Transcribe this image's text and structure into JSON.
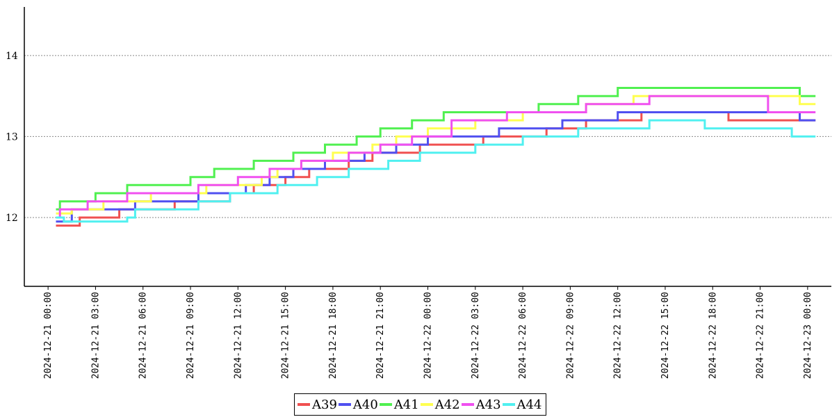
{
  "chart_data": {
    "type": "line",
    "step": true,
    "xlim": [
      "2024-12-20 22:30",
      "2024-12-23 01:30"
    ],
    "ylim": [
      11.15,
      14.6
    ],
    "y_ticks": [
      12,
      13,
      14
    ],
    "x_ticks": [
      "2024-12-21 00:00",
      "2024-12-21 03:00",
      "2024-12-21 06:00",
      "2024-12-21 09:00",
      "2024-12-21 12:00",
      "2024-12-21 15:00",
      "2024-12-21 18:00",
      "2024-12-21 21:00",
      "2024-12-22 00:00",
      "2024-12-22 03:00",
      "2024-12-22 06:00",
      "2024-12-22 09:00",
      "2024-12-22 12:00",
      "2024-12-22 15:00",
      "2024-12-22 18:00",
      "2024-12-22 21:00",
      "2024-12-23 00:00"
    ],
    "grid": "horizontal dotted",
    "legend": "bottom-center",
    "series": [
      {
        "name": "A39",
        "color": "#f05050",
        "points": [
          [
            "2024-12-21 00:30",
            11.9
          ],
          [
            "2024-12-21 02:00",
            12.0
          ],
          [
            "2024-12-21 04:30",
            12.1
          ],
          [
            "2024-12-21 08:00",
            12.2
          ],
          [
            "2024-12-21 11:30",
            12.3
          ],
          [
            "2024-12-21 13:00",
            12.4
          ],
          [
            "2024-12-21 15:00",
            12.5
          ],
          [
            "2024-12-21 16:30",
            12.6
          ],
          [
            "2024-12-21 19:00",
            12.7
          ],
          [
            "2024-12-21 20:30",
            12.8
          ],
          [
            "2024-12-21 23:30",
            12.9
          ],
          [
            "2024-12-22 03:30",
            13.0
          ],
          [
            "2024-12-22 07:30",
            13.1
          ],
          [
            "2024-12-22 10:00",
            13.2
          ],
          [
            "2024-12-22 13:30",
            13.3
          ],
          [
            "2024-12-22 19:00",
            13.2
          ],
          [
            "2024-12-23 00:30",
            13.2
          ]
        ]
      },
      {
        "name": "A40",
        "color": "#5050f0",
        "points": [
          [
            "2024-12-21 00:30",
            11.95
          ],
          [
            "2024-12-21 01:30",
            12.1
          ],
          [
            "2024-12-21 05:30",
            12.2
          ],
          [
            "2024-12-21 09:30",
            12.3
          ],
          [
            "2024-12-21 12:30",
            12.4
          ],
          [
            "2024-12-21 14:00",
            12.5
          ],
          [
            "2024-12-21 15:30",
            12.6
          ],
          [
            "2024-12-21 17:30",
            12.7
          ],
          [
            "2024-12-21 20:00",
            12.8
          ],
          [
            "2024-12-21 22:00",
            12.9
          ],
          [
            "2024-12-22 00:00",
            13.0
          ],
          [
            "2024-12-22 04:30",
            13.1
          ],
          [
            "2024-12-22 08:30",
            13.2
          ],
          [
            "2024-12-22 12:00",
            13.3
          ],
          [
            "2024-12-22 23:30",
            13.2
          ],
          [
            "2024-12-23 00:30",
            13.2
          ]
        ]
      },
      {
        "name": "A41",
        "color": "#50f050",
        "points": [
          [
            "2024-12-21 00:30",
            12.1
          ],
          [
            "2024-12-21 00:45",
            12.2
          ],
          [
            "2024-12-21 03:00",
            12.3
          ],
          [
            "2024-12-21 05:00",
            12.4
          ],
          [
            "2024-12-21 09:00",
            12.5
          ],
          [
            "2024-12-21 10:30",
            12.6
          ],
          [
            "2024-12-21 13:00",
            12.7
          ],
          [
            "2024-12-21 15:30",
            12.8
          ],
          [
            "2024-12-21 17:30",
            12.9
          ],
          [
            "2024-12-21 19:30",
            13.0
          ],
          [
            "2024-12-21 21:00",
            13.1
          ],
          [
            "2024-12-21 23:00",
            13.2
          ],
          [
            "2024-12-22 01:00",
            13.3
          ],
          [
            "2024-12-22 07:00",
            13.4
          ],
          [
            "2024-12-22 09:30",
            13.5
          ],
          [
            "2024-12-22 12:00",
            13.6
          ],
          [
            "2024-12-22 23:30",
            13.5
          ],
          [
            "2024-12-23 00:30",
            13.5
          ]
        ]
      },
      {
        "name": "A42",
        "color": "#ffff50",
        "points": [
          [
            "2024-12-21 00:30",
            12.05
          ],
          [
            "2024-12-21 01:30",
            12.1
          ],
          [
            "2024-12-21 03:30",
            12.2
          ],
          [
            "2024-12-21 06:30",
            12.3
          ],
          [
            "2024-12-21 10:00",
            12.4
          ],
          [
            "2024-12-21 13:30",
            12.5
          ],
          [
            "2024-12-21 14:30",
            12.6
          ],
          [
            "2024-12-21 16:00",
            12.7
          ],
          [
            "2024-12-21 18:00",
            12.8
          ],
          [
            "2024-12-21 20:30",
            12.9
          ],
          [
            "2024-12-21 22:00",
            13.0
          ],
          [
            "2024-12-22 00:00",
            13.1
          ],
          [
            "2024-12-22 03:00",
            13.2
          ],
          [
            "2024-12-22 06:00",
            13.3
          ],
          [
            "2024-12-22 10:00",
            13.4
          ],
          [
            "2024-12-22 13:00",
            13.5
          ],
          [
            "2024-12-22 23:30",
            13.4
          ],
          [
            "2024-12-23 00:30",
            13.4
          ]
        ]
      },
      {
        "name": "A43",
        "color": "#f050f0",
        "points": [
          [
            "2024-12-21 00:30",
            12.0
          ],
          [
            "2024-12-21 00:45",
            12.1
          ],
          [
            "2024-12-21 02:30",
            12.2
          ],
          [
            "2024-12-21 05:00",
            12.3
          ],
          [
            "2024-12-21 09:30",
            12.4
          ],
          [
            "2024-12-21 12:00",
            12.5
          ],
          [
            "2024-12-21 14:00",
            12.6
          ],
          [
            "2024-12-21 16:00",
            12.7
          ],
          [
            "2024-12-21 19:00",
            12.8
          ],
          [
            "2024-12-21 21:00",
            12.9
          ],
          [
            "2024-12-21 23:00",
            13.0
          ],
          [
            "2024-12-22 01:30",
            13.2
          ],
          [
            "2024-12-22 05:00",
            13.3
          ],
          [
            "2024-12-22 10:00",
            13.4
          ],
          [
            "2024-12-22 14:00",
            13.5
          ],
          [
            "2024-12-22 21:30",
            13.3
          ],
          [
            "2024-12-23 00:30",
            13.3
          ]
        ]
      },
      {
        "name": "A44",
        "color": "#50f0f0",
        "points": [
          [
            "2024-12-21 00:30",
            12.0
          ],
          [
            "2024-12-21 01:00",
            11.95
          ],
          [
            "2024-12-21 05:00",
            12.0
          ],
          [
            "2024-12-21 05:30",
            12.1
          ],
          [
            "2024-12-21 09:30",
            12.2
          ],
          [
            "2024-12-21 11:30",
            12.3
          ],
          [
            "2024-12-21 14:30",
            12.4
          ],
          [
            "2024-12-21 17:00",
            12.5
          ],
          [
            "2024-12-21 19:00",
            12.6
          ],
          [
            "2024-12-21 21:30",
            12.7
          ],
          [
            "2024-12-21 23:30",
            12.8
          ],
          [
            "2024-12-22 03:00",
            12.9
          ],
          [
            "2024-12-22 06:00",
            13.0
          ],
          [
            "2024-12-22 09:30",
            13.1
          ],
          [
            "2024-12-22 14:00",
            13.2
          ],
          [
            "2024-12-22 17:30",
            13.1
          ],
          [
            "2024-12-22 23:00",
            13.0
          ],
          [
            "2024-12-23 00:30",
            13.0
          ]
        ]
      }
    ]
  }
}
